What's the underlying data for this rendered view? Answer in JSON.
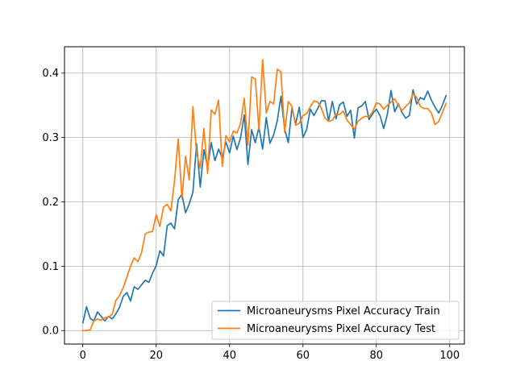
{
  "chart_data": {
    "type": "line",
    "title": "",
    "xlabel": "",
    "ylabel": "",
    "xlim": [
      -5,
      104
    ],
    "ylim": [
      -0.021,
      0.441
    ],
    "grid": true,
    "legend_position": "lower-right",
    "x_ticks": [
      0,
      20,
      40,
      60,
      80,
      100
    ],
    "x_tick_labels": [
      "0",
      "20",
      "40",
      "60",
      "80",
      "100"
    ],
    "y_ticks": [
      0.0,
      0.1,
      0.2,
      0.3,
      0.4
    ],
    "y_tick_labels": [
      "0.0",
      "0.1",
      "0.2",
      "0.3",
      "0.4"
    ],
    "x": [
      0,
      1,
      2,
      3,
      4,
      5,
      6,
      7,
      8,
      9,
      10,
      11,
      12,
      13,
      14,
      15,
      16,
      17,
      18,
      19,
      20,
      21,
      22,
      23,
      24,
      25,
      26,
      27,
      28,
      29,
      30,
      31,
      32,
      33,
      34,
      35,
      36,
      37,
      38,
      39,
      40,
      41,
      42,
      43,
      44,
      45,
      46,
      47,
      48,
      49,
      50,
      51,
      52,
      53,
      54,
      55,
      56,
      57,
      58,
      59,
      60,
      61,
      62,
      63,
      64,
      65,
      66,
      67,
      68,
      69,
      70,
      71,
      72,
      73,
      74,
      75,
      76,
      77,
      78,
      79,
      80,
      81,
      82,
      83,
      84,
      85,
      86,
      87,
      88,
      89,
      90,
      91,
      92,
      93,
      94,
      95,
      96,
      97,
      98,
      99
    ],
    "series": [
      {
        "name": "Microaneurysms Pixel Accuracy Train",
        "color": "#1f77b4",
        "values": [
          0.012,
          0.037,
          0.019,
          0.015,
          0.029,
          0.022,
          0.015,
          0.022,
          0.018,
          0.026,
          0.036,
          0.053,
          0.059,
          0.046,
          0.068,
          0.064,
          0.071,
          0.078,
          0.075,
          0.089,
          0.101,
          0.124,
          0.116,
          0.163,
          0.167,
          0.158,
          0.203,
          0.212,
          0.183,
          0.197,
          0.215,
          0.29,
          0.223,
          0.281,
          0.254,
          0.292,
          0.264,
          0.282,
          0.268,
          0.293,
          0.276,
          0.302,
          0.281,
          0.3,
          0.335,
          0.258,
          0.312,
          0.292,
          0.316,
          0.282,
          0.331,
          0.291,
          0.304,
          0.326,
          0.364,
          0.313,
          0.292,
          0.346,
          0.321,
          0.347,
          0.3,
          0.312,
          0.344,
          0.334,
          0.345,
          0.357,
          0.357,
          0.326,
          0.356,
          0.329,
          0.351,
          0.355,
          0.333,
          0.342,
          0.299,
          0.346,
          0.349,
          0.356,
          0.328,
          0.337,
          0.344,
          0.334,
          0.314,
          0.336,
          0.373,
          0.34,
          0.352,
          0.339,
          0.33,
          0.334,
          0.374,
          0.352,
          0.362,
          0.359,
          0.372,
          0.358,
          0.347,
          0.338,
          0.35,
          0.365
        ]
      },
      {
        "name": "Microaneurysms Pixel Accuracy Test",
        "color": "#ff7f0e",
        "values": [
          0.0,
          0.0,
          0.001,
          0.015,
          0.018,
          0.016,
          0.02,
          0.021,
          0.025,
          0.047,
          0.054,
          0.067,
          0.083,
          0.1,
          0.113,
          0.107,
          0.121,
          0.15,
          0.153,
          0.154,
          0.18,
          0.162,
          0.192,
          0.196,
          0.186,
          0.233,
          0.298,
          0.205,
          0.271,
          0.234,
          0.348,
          0.276,
          0.252,
          0.314,
          0.244,
          0.343,
          0.336,
          0.358,
          0.255,
          0.303,
          0.293,
          0.31,
          0.307,
          0.322,
          0.361,
          0.288,
          0.394,
          0.391,
          0.312,
          0.421,
          0.338,
          0.356,
          0.352,
          0.406,
          0.402,
          0.308,
          0.356,
          0.348,
          0.319,
          0.322,
          0.334,
          0.337,
          0.348,
          0.357,
          0.355,
          0.346,
          0.33,
          0.325,
          0.327,
          0.336,
          0.336,
          0.341,
          0.327,
          0.32,
          0.313,
          0.325,
          0.33,
          0.333,
          0.332,
          0.34,
          0.354,
          0.352,
          0.344,
          0.35,
          0.355,
          0.36,
          0.35,
          0.342,
          0.348,
          0.354,
          0.368,
          0.362,
          0.348,
          0.345,
          0.345,
          0.338,
          0.32,
          0.325,
          0.339,
          0.353
        ]
      }
    ]
  }
}
